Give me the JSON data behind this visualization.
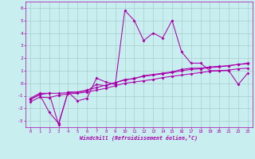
{
  "bg_color": "#c8eef0",
  "grid_color": "#aacccc",
  "line_color": "#aa00aa",
  "xlim": [
    -0.5,
    23.5
  ],
  "ylim": [
    -3.5,
    6.5
  ],
  "x_ticks": [
    0,
    1,
    2,
    3,
    4,
    5,
    6,
    7,
    8,
    9,
    10,
    11,
    12,
    13,
    14,
    15,
    16,
    17,
    18,
    19,
    20,
    21,
    22,
    23
  ],
  "y_ticks": [
    -3,
    -2,
    -1,
    0,
    1,
    2,
    3,
    4,
    5,
    6
  ],
  "xlabel": "Windchill (Refroidissement éolien,°C)",
  "line1_x": [
    0,
    1,
    2,
    3,
    4,
    5,
    6,
    7,
    8,
    9,
    10,
    11,
    12,
    13,
    14,
    15,
    16,
    17,
    18,
    19,
    20,
    21,
    22,
    23
  ],
  "line1_y": [
    -1.2,
    -0.8,
    -0.8,
    -3.3,
    -0.7,
    -1.4,
    -1.2,
    0.4,
    0.1,
    -0.1,
    5.8,
    5.0,
    3.4,
    4.0,
    3.6,
    5.0,
    2.5,
    1.6,
    1.6,
    1.0,
    1.0,
    1.0,
    -0.1,
    0.8
  ],
  "line2_x": [
    0,
    1,
    2,
    3,
    4,
    5,
    6,
    7,
    8,
    9,
    10,
    11,
    12,
    13,
    14,
    15,
    16,
    17,
    18,
    19,
    20,
    21,
    22,
    23
  ],
  "line2_y": [
    -1.3,
    -0.9,
    -0.8,
    -0.8,
    -0.75,
    -0.7,
    -0.55,
    -0.35,
    -0.15,
    0.05,
    0.25,
    0.4,
    0.55,
    0.65,
    0.75,
    0.85,
    1.0,
    1.1,
    1.15,
    1.25,
    1.3,
    1.4,
    1.5,
    1.55
  ],
  "line3_x": [
    0,
    1,
    2,
    3,
    4,
    5,
    6,
    7,
    8,
    9,
    10,
    11,
    12,
    13,
    14,
    15,
    16,
    17,
    18,
    19,
    20,
    21,
    22,
    23
  ],
  "line3_y": [
    -1.5,
    -1.1,
    -1.15,
    -0.95,
    -0.85,
    -0.8,
    -0.7,
    -0.55,
    -0.4,
    -0.2,
    0.0,
    0.1,
    0.2,
    0.3,
    0.45,
    0.55,
    0.65,
    0.75,
    0.85,
    0.95,
    1.0,
    1.05,
    1.15,
    1.2
  ],
  "line4_x": [
    0,
    1,
    2,
    3,
    4,
    5,
    6,
    7,
    8,
    9,
    10,
    11,
    12,
    13,
    14,
    15,
    16,
    17,
    18,
    19,
    20,
    21,
    22,
    23
  ],
  "line4_y": [
    -1.3,
    -0.9,
    -2.3,
    -3.2,
    -0.7,
    -0.7,
    -0.6,
    -0.1,
    -0.2,
    0.05,
    0.3,
    0.35,
    0.6,
    0.7,
    0.8,
    0.9,
    1.1,
    1.2,
    1.2,
    1.3,
    1.35,
    1.4,
    1.5,
    1.6
  ]
}
